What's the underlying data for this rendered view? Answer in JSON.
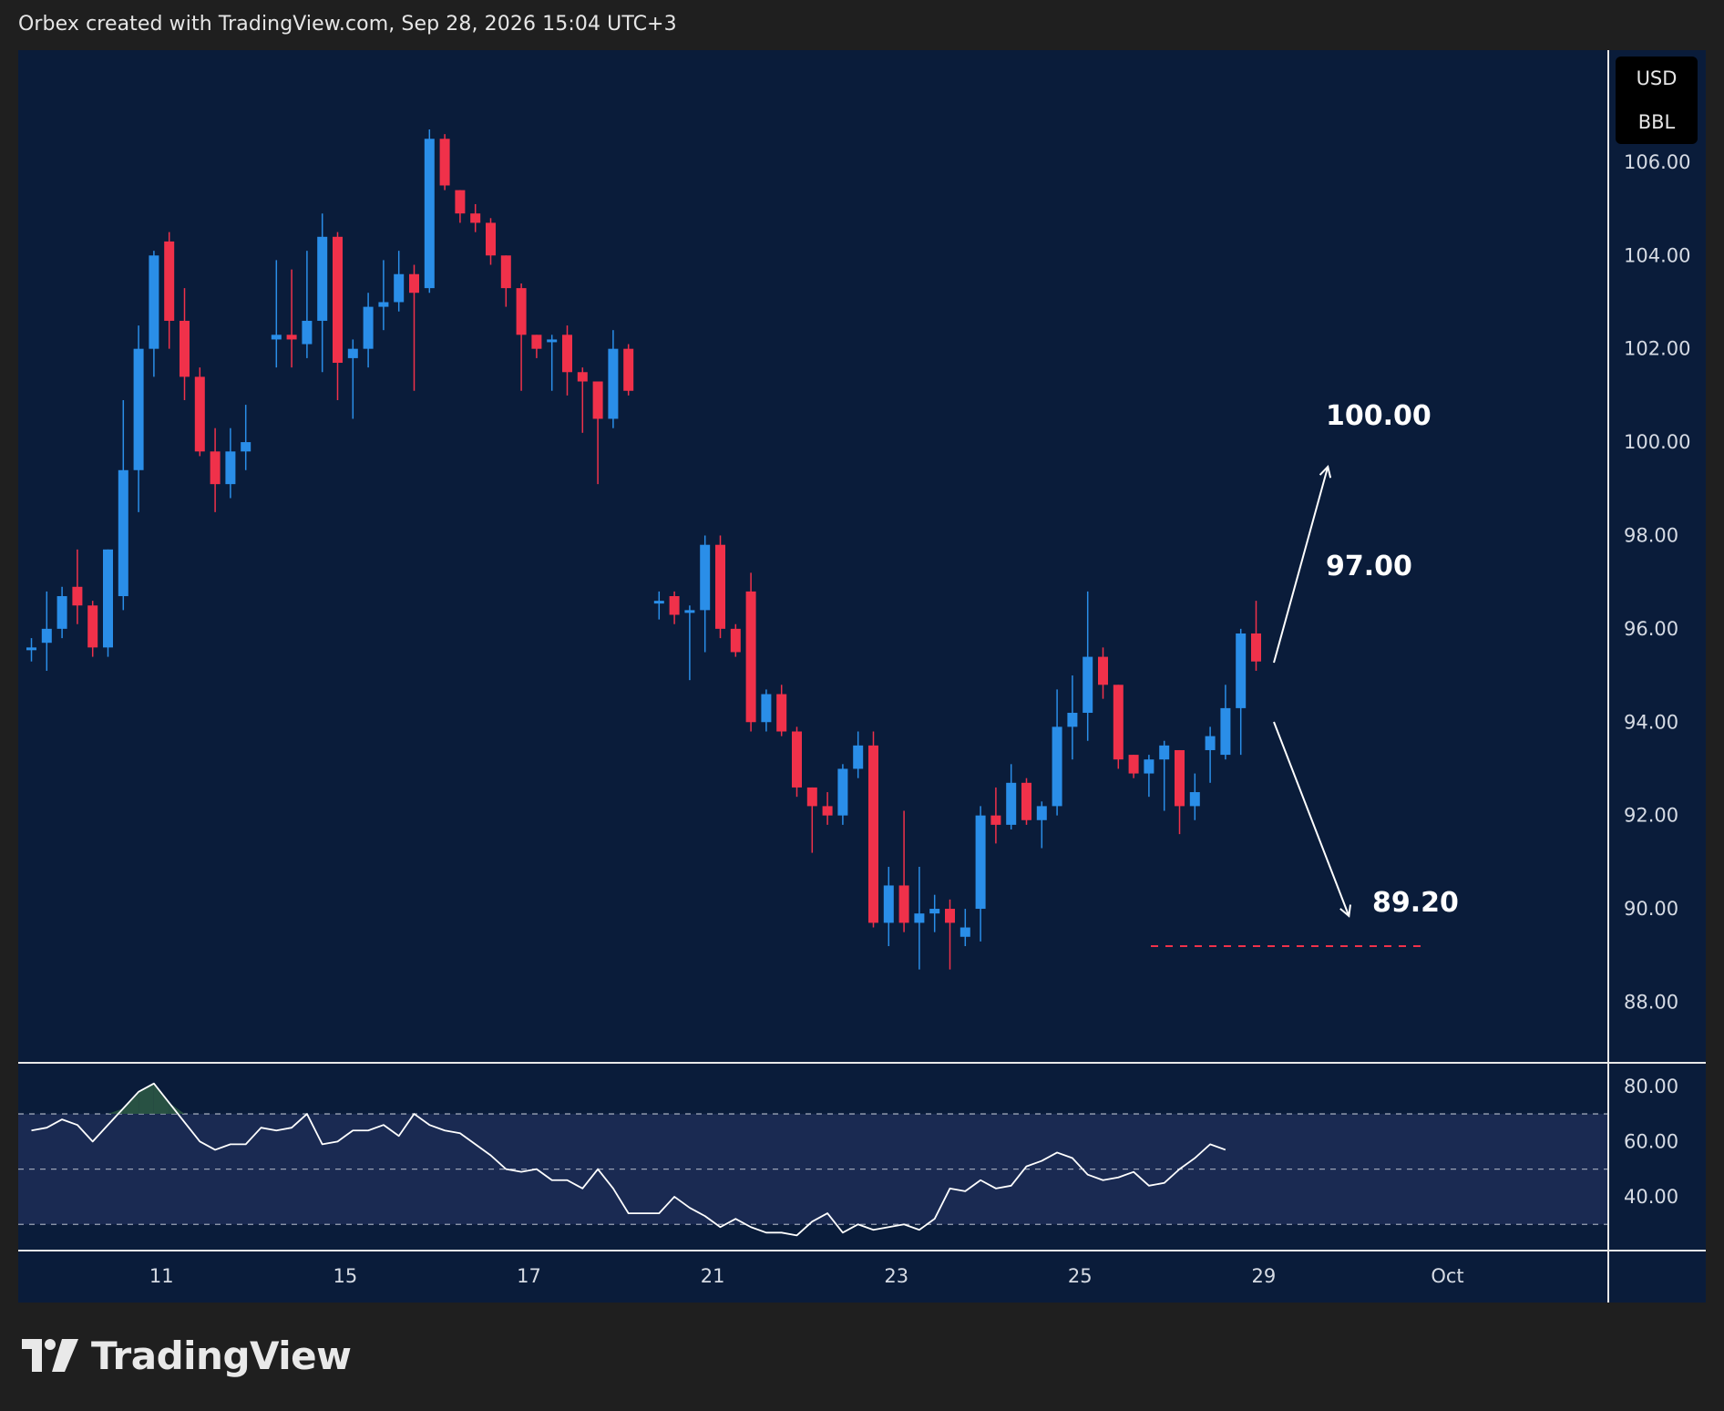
{
  "header": {
    "text": "Orbex created with TradingView.com, Sep 28, 2026 15:04 UTC+3"
  },
  "currency": {
    "unit": "USD",
    "per": "BBL"
  },
  "brand": {
    "name": "TradingView"
  },
  "colors": {
    "background": "#0a1c3a",
    "bull": "#2a8ee8",
    "bear": "#f0314a",
    "rsi_line": "#ffffff",
    "rsi_band": "#1a2a52",
    "support_line": "#f0314a"
  },
  "chart_data": [
    {
      "type": "candlestick",
      "title": "",
      "y_ticks": [
        "106.00",
        "104.00",
        "102.00",
        "100.00",
        "98.00",
        "96.00",
        "94.00",
        "92.00",
        "90.00",
        "88.00"
      ],
      "ylim": [
        86.7,
        108.4
      ],
      "x_ticks": [
        {
          "label": "11",
          "index": 8.5
        },
        {
          "label": "15",
          "index": 20.5
        },
        {
          "label": "17",
          "index": 32.5
        },
        {
          "label": "21",
          "index": 44.5
        },
        {
          "label": "23",
          "index": 56.5
        },
        {
          "label": "25",
          "index": 68.5
        },
        {
          "label": "29",
          "index": 80.5
        },
        {
          "label": "Oct",
          "index": 92.5
        }
      ],
      "candles": [
        {
          "o": 95.6,
          "h": 95.8,
          "l": 95.3,
          "c": 95.6
        },
        {
          "o": 95.7,
          "h": 96.8,
          "l": 95.1,
          "c": 96.0
        },
        {
          "o": 96.0,
          "h": 96.9,
          "l": 95.8,
          "c": 96.7
        },
        {
          "o": 96.9,
          "h": 97.7,
          "l": 96.1,
          "c": 96.5
        },
        {
          "o": 96.5,
          "h": 96.6,
          "l": 95.4,
          "c": 95.6
        },
        {
          "o": 95.6,
          "h": 97.7,
          "l": 95.4,
          "c": 97.7
        },
        {
          "o": 96.7,
          "h": 100.9,
          "l": 96.4,
          "c": 99.4
        },
        {
          "o": 99.4,
          "h": 102.5,
          "l": 98.5,
          "c": 102.0
        },
        {
          "o": 102.0,
          "h": 104.1,
          "l": 101.4,
          "c": 104.0
        },
        {
          "o": 104.3,
          "h": 104.5,
          "l": 102.0,
          "c": 102.6
        },
        {
          "o": 102.6,
          "h": 103.3,
          "l": 100.9,
          "c": 101.4
        },
        {
          "o": 101.4,
          "h": 101.6,
          "l": 99.7,
          "c": 99.8
        },
        {
          "o": 99.8,
          "h": 100.3,
          "l": 98.5,
          "c": 99.1
        },
        {
          "o": 99.1,
          "h": 100.3,
          "l": 98.8,
          "c": 99.8
        },
        {
          "o": 99.8,
          "h": 100.8,
          "l": 99.4,
          "c": 100.0
        },
        {},
        {
          "o": 102.2,
          "h": 103.9,
          "l": 101.6,
          "c": 102.3
        },
        {
          "o": 102.3,
          "h": 103.7,
          "l": 101.6,
          "c": 102.2
        },
        {
          "o": 102.1,
          "h": 104.1,
          "l": 101.8,
          "c": 102.6
        },
        {
          "o": 102.6,
          "h": 104.9,
          "l": 101.5,
          "c": 104.4
        },
        {
          "o": 104.4,
          "h": 104.5,
          "l": 100.9,
          "c": 101.7
        },
        {
          "o": 101.8,
          "h": 102.2,
          "l": 100.5,
          "c": 102.0
        },
        {
          "o": 102.0,
          "h": 103.2,
          "l": 101.6,
          "c": 102.9
        },
        {
          "o": 102.9,
          "h": 103.9,
          "l": 102.4,
          "c": 103.0
        },
        {
          "o": 103.0,
          "h": 104.1,
          "l": 102.8,
          "c": 103.6
        },
        {
          "o": 103.6,
          "h": 103.8,
          "l": 101.1,
          "c": 103.2
        },
        {
          "o": 103.3,
          "h": 106.7,
          "l": 103.2,
          "c": 106.5
        },
        {
          "o": 106.5,
          "h": 106.6,
          "l": 105.4,
          "c": 105.5
        },
        {
          "o": 105.4,
          "h": 105.4,
          "l": 104.7,
          "c": 104.9
        },
        {
          "o": 104.9,
          "h": 105.1,
          "l": 104.5,
          "c": 104.7
        },
        {
          "o": 104.7,
          "h": 104.8,
          "l": 103.8,
          "c": 104.0
        },
        {
          "o": 104.0,
          "h": 104.0,
          "l": 102.9,
          "c": 103.3
        },
        {
          "o": 103.3,
          "h": 103.4,
          "l": 101.1,
          "c": 102.3
        },
        {
          "o": 102.3,
          "h": 102.3,
          "l": 101.8,
          "c": 102.0
        },
        {
          "o": 102.2,
          "h": 102.3,
          "l": 101.1,
          "c": 102.2
        },
        {
          "o": 102.3,
          "h": 102.5,
          "l": 101.0,
          "c": 101.5
        },
        {
          "o": 101.5,
          "h": 101.6,
          "l": 100.2,
          "c": 101.3
        },
        {
          "o": 101.3,
          "h": 101.3,
          "l": 99.1,
          "c": 100.5
        },
        {
          "o": 100.5,
          "h": 102.4,
          "l": 100.3,
          "c": 102.0
        },
        {
          "o": 102.0,
          "h": 102.1,
          "l": 101.0,
          "c": 101.1
        },
        {},
        {
          "o": 96.6,
          "h": 96.8,
          "l": 96.2,
          "c": 96.6
        },
        {
          "o": 96.7,
          "h": 96.8,
          "l": 96.1,
          "c": 96.3
        },
        {
          "o": 96.4,
          "h": 96.5,
          "l": 94.9,
          "c": 96.4
        },
        {
          "o": 96.4,
          "h": 98.0,
          "l": 95.5,
          "c": 97.8
        },
        {
          "o": 97.8,
          "h": 98.0,
          "l": 95.8,
          "c": 96.0
        },
        {
          "o": 96.0,
          "h": 96.1,
          "l": 95.4,
          "c": 95.5
        },
        {
          "o": 96.8,
          "h": 97.2,
          "l": 93.8,
          "c": 94.0
        },
        {
          "o": 94.0,
          "h": 94.7,
          "l": 93.8,
          "c": 94.6
        },
        {
          "o": 94.6,
          "h": 94.8,
          "l": 93.7,
          "c": 93.8
        },
        {
          "o": 93.8,
          "h": 93.9,
          "l": 92.4,
          "c": 92.6
        },
        {
          "o": 92.6,
          "h": 92.6,
          "l": 91.2,
          "c": 92.2
        },
        {
          "o": 92.2,
          "h": 92.5,
          "l": 91.8,
          "c": 92.0
        },
        {
          "o": 92.0,
          "h": 93.1,
          "l": 91.8,
          "c": 93.0
        },
        {
          "o": 93.0,
          "h": 93.8,
          "l": 92.8,
          "c": 93.5
        },
        {
          "o": 93.5,
          "h": 93.8,
          "l": 89.6,
          "c": 89.7
        },
        {
          "o": 89.7,
          "h": 90.9,
          "l": 89.2,
          "c": 90.5
        },
        {
          "o": 90.5,
          "h": 92.1,
          "l": 89.5,
          "c": 89.7
        },
        {
          "o": 89.7,
          "h": 90.9,
          "l": 88.7,
          "c": 89.9
        },
        {
          "o": 89.9,
          "h": 90.3,
          "l": 89.5,
          "c": 90.0
        },
        {
          "o": 90.0,
          "h": 90.2,
          "l": 88.7,
          "c": 89.7
        },
        {
          "o": 89.4,
          "h": 90.0,
          "l": 89.2,
          "c": 89.6
        },
        {
          "o": 90.0,
          "h": 92.2,
          "l": 89.3,
          "c": 92.0
        },
        {
          "o": 92.0,
          "h": 92.6,
          "l": 91.4,
          "c": 91.8
        },
        {
          "o": 91.8,
          "h": 93.1,
          "l": 91.7,
          "c": 92.7
        },
        {
          "o": 92.7,
          "h": 92.8,
          "l": 91.8,
          "c": 91.9
        },
        {
          "o": 91.9,
          "h": 92.3,
          "l": 91.3,
          "c": 92.2
        },
        {
          "o": 92.2,
          "h": 94.7,
          "l": 92.0,
          "c": 93.9
        },
        {
          "o": 93.9,
          "h": 95.0,
          "l": 93.2,
          "c": 94.2
        },
        {
          "o": 94.2,
          "h": 96.8,
          "l": 93.6,
          "c": 95.4
        },
        {
          "o": 95.4,
          "h": 95.6,
          "l": 94.5,
          "c": 94.8
        },
        {
          "o": 94.8,
          "h": 94.8,
          "l": 93.0,
          "c": 93.2
        },
        {
          "o": 93.3,
          "h": 93.3,
          "l": 92.8,
          "c": 92.9
        },
        {
          "o": 92.9,
          "h": 93.3,
          "l": 92.4,
          "c": 93.2
        },
        {
          "o": 93.2,
          "h": 93.6,
          "l": 92.1,
          "c": 93.5
        },
        {
          "o": 93.4,
          "h": 93.4,
          "l": 91.6,
          "c": 92.2
        },
        {
          "o": 92.2,
          "h": 92.9,
          "l": 91.9,
          "c": 92.5
        },
        {
          "o": 93.4,
          "h": 93.9,
          "l": 92.7,
          "c": 93.7
        },
        {
          "o": 93.3,
          "h": 94.8,
          "l": 93.2,
          "c": 94.3
        },
        {
          "o": 94.3,
          "h": 96.0,
          "l": 93.3,
          "c": 95.9
        },
        {
          "o": 95.9,
          "h": 96.6,
          "l": 95.1,
          "c": 95.3
        }
      ],
      "annotations": [
        {
          "text": "100.00",
          "value": 100.0
        },
        {
          "text": "97.00",
          "value": 97.0
        },
        {
          "text": "89.20",
          "value": 89.2
        }
      ],
      "support_level": 89.2
    },
    {
      "type": "line",
      "title": "",
      "y_ticks": [
        "80.00",
        "60.00",
        "40.00"
      ],
      "ylim": [
        20.5,
        88.5
      ],
      "levels": [
        70,
        50,
        30
      ],
      "values": [
        64,
        65,
        68,
        66,
        60,
        66,
        72,
        78,
        81,
        74,
        67,
        60,
        57,
        59,
        59,
        65,
        64,
        65,
        70,
        59,
        60,
        64,
        64,
        66,
        62,
        70,
        66,
        64,
        63,
        59,
        55,
        50,
        49,
        50,
        46,
        46,
        43,
        50,
        43,
        34,
        34,
        34,
        40,
        36,
        33,
        29,
        32,
        29,
        27,
        27,
        26,
        31,
        34,
        27,
        30,
        28,
        29,
        30,
        28,
        32,
        43,
        42,
        46,
        43,
        44,
        51,
        53,
        56,
        54,
        48,
        46,
        47,
        49,
        44,
        45,
        50,
        54,
        59,
        57
      ]
    }
  ]
}
